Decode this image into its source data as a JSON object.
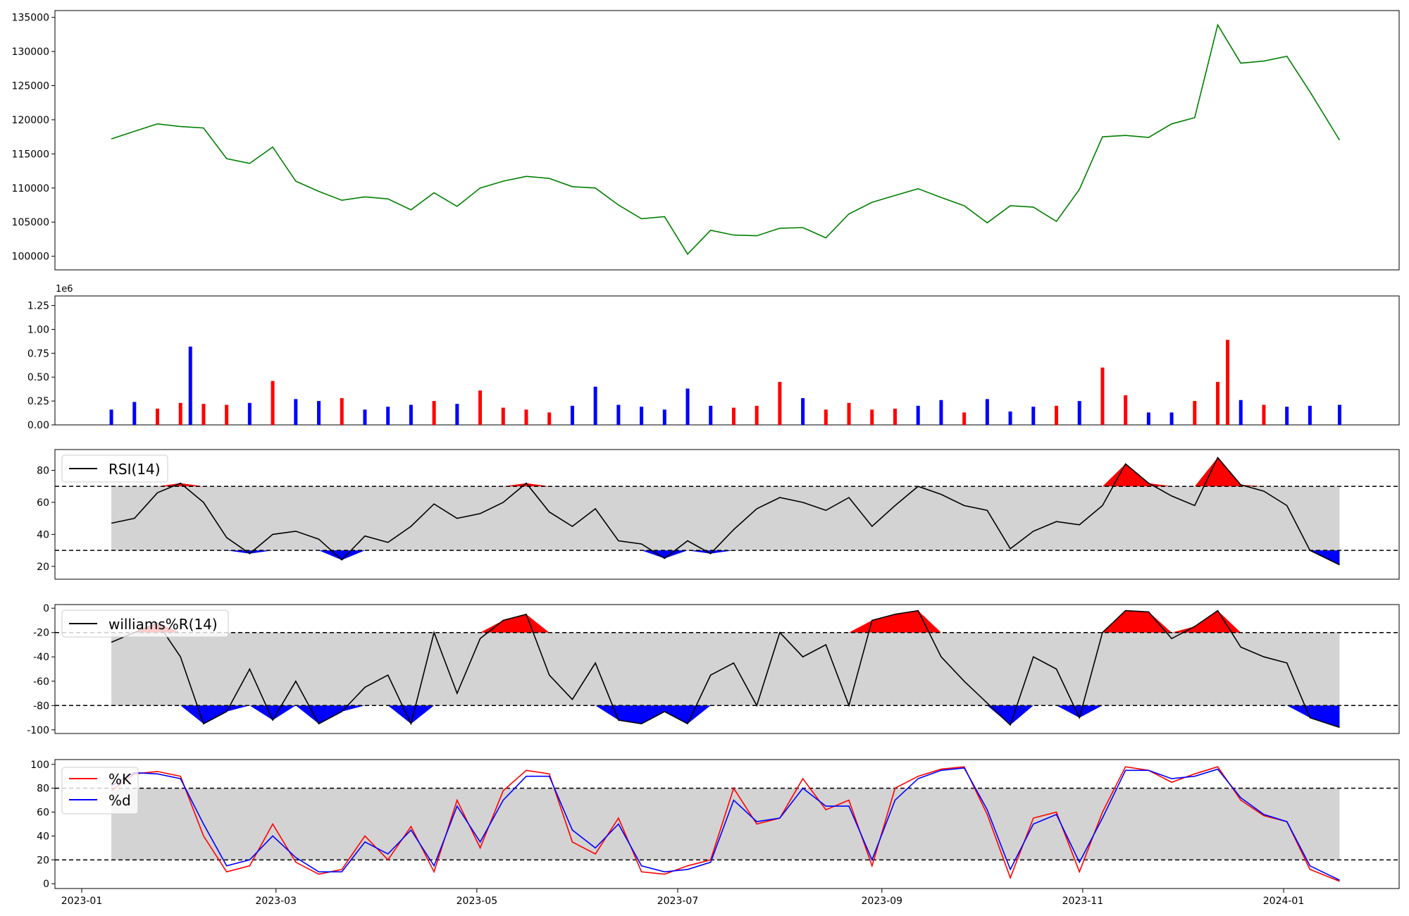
{
  "x_axis": {
    "type": "date",
    "ticks": [
      "2023-01",
      "2023-03",
      "2023-05",
      "2023-07",
      "2023-09",
      "2023-11",
      "2024-01"
    ]
  },
  "panels": {
    "price": {
      "yticks": [
        100000,
        105000,
        110000,
        115000,
        120000,
        125000,
        130000,
        135000
      ],
      "line_color": "#008000"
    },
    "volume": {
      "offset_label": "1e6",
      "yticks": [
        "0.00",
        "0.25",
        "0.50",
        "0.75",
        "1.00",
        "1.25"
      ],
      "colors": {
        "up": "#ff0000",
        "down": "#0000ff",
        "flat": "#000000"
      }
    },
    "rsi": {
      "legend": "RSI(14)",
      "yticks": [
        20,
        40,
        60,
        80
      ],
      "bands": [
        30,
        70
      ]
    },
    "williams": {
      "legend": "williams%R(14)",
      "yticks": [
        0,
        -20,
        -40,
        -60,
        -80,
        -100
      ],
      "bands": [
        -80,
        -20
      ]
    },
    "stoch": {
      "legend_k": "%K",
      "legend_d": "%d",
      "yticks": [
        0,
        20,
        40,
        60,
        80,
        100
      ],
      "bands": [
        20,
        80
      ],
      "k_color": "#ff0000",
      "d_color": "#0000ff"
    }
  },
  "chart_data": [
    {
      "type": "line",
      "name": "price",
      "x": [
        "2023-01-10",
        "2023-01-17",
        "2023-01-24",
        "2023-01-31",
        "2023-02-07",
        "2023-02-14",
        "2023-02-21",
        "2023-02-28",
        "2023-03-07",
        "2023-03-14",
        "2023-03-21",
        "2023-03-28",
        "2023-04-04",
        "2023-04-11",
        "2023-04-18",
        "2023-04-25",
        "2023-05-02",
        "2023-05-09",
        "2023-05-16",
        "2023-05-23",
        "2023-05-30",
        "2023-06-06",
        "2023-06-13",
        "2023-06-20",
        "2023-06-27",
        "2023-07-04",
        "2023-07-11",
        "2023-07-18",
        "2023-07-25",
        "2023-08-01",
        "2023-08-08",
        "2023-08-15",
        "2023-08-22",
        "2023-08-29",
        "2023-09-05",
        "2023-09-12",
        "2023-09-19",
        "2023-09-26",
        "2023-10-03",
        "2023-10-10",
        "2023-10-17",
        "2023-10-24",
        "2023-10-31",
        "2023-11-07",
        "2023-11-14",
        "2023-11-21",
        "2023-11-28",
        "2023-12-05",
        "2023-12-12",
        "2023-12-19",
        "2023-12-26",
        "2024-01-02",
        "2024-01-09",
        "2024-01-18"
      ],
      "y": [
        117200,
        118300,
        119400,
        119000,
        118800,
        114300,
        113600,
        116000,
        111000,
        109500,
        108200,
        108700,
        108400,
        106800,
        109300,
        107300,
        110000,
        111000,
        111700,
        111400,
        110200,
        110000,
        107500,
        105500,
        105800,
        100300,
        103800,
        103100,
        103000,
        104100,
        104200,
        102700,
        106200,
        107900,
        108900,
        109900,
        108600,
        107400,
        104900,
        107400,
        107200,
        105100,
        109800,
        117500,
        117700,
        117400,
        119400,
        120300,
        133900,
        128300,
        128600,
        129300,
        124100,
        117000
      ]
    },
    {
      "type": "bar",
      "name": "volume",
      "x": [
        "2023-01-10",
        "2023-01-17",
        "2023-01-24",
        "2023-01-31",
        "2023-02-03",
        "2023-02-07",
        "2023-02-14",
        "2023-02-21",
        "2023-02-28",
        "2023-03-07",
        "2023-03-14",
        "2023-03-21",
        "2023-03-28",
        "2023-04-04",
        "2023-04-11",
        "2023-04-18",
        "2023-04-25",
        "2023-05-02",
        "2023-05-09",
        "2023-05-16",
        "2023-05-23",
        "2023-05-30",
        "2023-06-06",
        "2023-06-13",
        "2023-06-20",
        "2023-06-27",
        "2023-07-04",
        "2023-07-11",
        "2023-07-18",
        "2023-07-25",
        "2023-08-01",
        "2023-08-08",
        "2023-08-15",
        "2023-08-22",
        "2023-08-29",
        "2023-09-05",
        "2023-09-12",
        "2023-09-19",
        "2023-09-26",
        "2023-10-03",
        "2023-10-10",
        "2023-10-17",
        "2023-10-24",
        "2023-10-31",
        "2023-11-07",
        "2023-11-14",
        "2023-11-21",
        "2023-11-28",
        "2023-12-05",
        "2023-12-12",
        "2023-12-15",
        "2023-12-19",
        "2023-12-26",
        "2024-01-02",
        "2024-01-09",
        "2024-01-18"
      ],
      "values": [
        160000,
        240000,
        170000,
        230000,
        820000,
        220000,
        210000,
        230000,
        460000,
        270000,
        250000,
        280000,
        160000,
        190000,
        210000,
        250000,
        220000,
        360000,
        180000,
        160000,
        130000,
        200000,
        400000,
        210000,
        190000,
        160000,
        380000,
        200000,
        180000,
        200000,
        450000,
        280000,
        160000,
        230000,
        160000,
        170000,
        200000,
        260000,
        130000,
        270000,
        140000,
        190000,
        200000,
        250000,
        600000,
        310000,
        130000,
        130000,
        250000,
        450000,
        890000,
        260000,
        210000,
        190000,
        200000,
        210000
      ],
      "direction": [
        "down",
        "down",
        "up",
        "up",
        "down",
        "up",
        "up",
        "down",
        "up",
        "down",
        "down",
        "up",
        "down",
        "down",
        "down",
        "up",
        "down",
        "up",
        "up",
        "up",
        "up",
        "down",
        "down",
        "down",
        "down",
        "down",
        "down",
        "down",
        "up",
        "up",
        "up",
        "down",
        "up",
        "up",
        "up",
        "up",
        "down",
        "down",
        "up",
        "down",
        "down",
        "down",
        "up",
        "down",
        "up",
        "up",
        "down",
        "down",
        "up",
        "up",
        "up",
        "down",
        "up",
        "down",
        "down",
        "down"
      ]
    },
    {
      "type": "line",
      "name": "RSI(14)",
      "x": [
        "2023-01-10",
        "2023-01-17",
        "2023-01-24",
        "2023-01-31",
        "2023-02-07",
        "2023-02-14",
        "2023-02-21",
        "2023-02-28",
        "2023-03-07",
        "2023-03-14",
        "2023-03-21",
        "2023-03-28",
        "2023-04-04",
        "2023-04-11",
        "2023-04-18",
        "2023-04-25",
        "2023-05-02",
        "2023-05-09",
        "2023-05-16",
        "2023-05-23",
        "2023-05-30",
        "2023-06-06",
        "2023-06-13",
        "2023-06-20",
        "2023-06-27",
        "2023-07-04",
        "2023-07-11",
        "2023-07-18",
        "2023-07-25",
        "2023-08-01",
        "2023-08-08",
        "2023-08-15",
        "2023-08-22",
        "2023-08-29",
        "2023-09-05",
        "2023-09-12",
        "2023-09-19",
        "2023-09-26",
        "2023-10-03",
        "2023-10-10",
        "2023-10-17",
        "2023-10-24",
        "2023-10-31",
        "2023-11-07",
        "2023-11-14",
        "2023-11-21",
        "2023-11-28",
        "2023-12-05",
        "2023-12-12",
        "2023-12-19",
        "2023-12-26",
        "2024-01-02",
        "2024-01-09",
        "2024-01-18"
      ],
      "y": [
        47,
        50,
        66,
        72,
        60,
        38,
        28,
        40,
        42,
        37,
        24,
        39,
        35,
        45,
        59,
        50,
        53,
        60,
        72,
        54,
        45,
        56,
        36,
        34,
        25,
        36,
        28,
        43,
        56,
        63,
        60,
        55,
        63,
        45,
        58,
        70,
        65,
        58,
        55,
        31,
        42,
        48,
        46,
        58,
        84,
        72,
        64,
        58,
        88,
        71,
        67,
        58,
        30,
        21
      ]
    },
    {
      "type": "line",
      "name": "williams%R(14)",
      "x": [
        "2023-01-10",
        "2023-01-17",
        "2023-01-24",
        "2023-01-31",
        "2023-02-07",
        "2023-02-14",
        "2023-02-21",
        "2023-02-28",
        "2023-03-07",
        "2023-03-14",
        "2023-03-21",
        "2023-03-28",
        "2023-04-04",
        "2023-04-11",
        "2023-04-18",
        "2023-04-25",
        "2023-05-02",
        "2023-05-09",
        "2023-05-16",
        "2023-05-23",
        "2023-05-30",
        "2023-06-06",
        "2023-06-13",
        "2023-06-20",
        "2023-06-27",
        "2023-07-04",
        "2023-07-11",
        "2023-07-18",
        "2023-07-25",
        "2023-08-01",
        "2023-08-08",
        "2023-08-15",
        "2023-08-22",
        "2023-08-29",
        "2023-09-05",
        "2023-09-12",
        "2023-09-19",
        "2023-09-26",
        "2023-10-03",
        "2023-10-10",
        "2023-10-17",
        "2023-10-24",
        "2023-10-31",
        "2023-11-07",
        "2023-11-14",
        "2023-11-21",
        "2023-11-28",
        "2023-12-05",
        "2023-12-12",
        "2023-12-19",
        "2023-12-26",
        "2024-01-02",
        "2024-01-09",
        "2024-01-18"
      ],
      "y": [
        -28,
        -20,
        -12,
        -40,
        -95,
        -85,
        -50,
        -92,
        -60,
        -95,
        -85,
        -65,
        -55,
        -95,
        -20,
        -70,
        -25,
        -10,
        -5,
        -55,
        -75,
        -45,
        -92,
        -95,
        -85,
        -95,
        -55,
        -45,
        -80,
        -20,
        -40,
        -30,
        -80,
        -10,
        -5,
        -2,
        -40,
        -60,
        -78,
        -96,
        -40,
        -50,
        -90,
        -20,
        -2,
        -3,
        -25,
        -15,
        -2,
        -32,
        -40,
        -45,
        -90,
        -98
      ]
    },
    {
      "type": "line",
      "name": "stochastic",
      "x": [
        "2023-01-10",
        "2023-01-17",
        "2023-01-24",
        "2023-01-31",
        "2023-02-07",
        "2023-02-14",
        "2023-02-21",
        "2023-02-28",
        "2023-03-07",
        "2023-03-14",
        "2023-03-21",
        "2023-03-28",
        "2023-04-04",
        "2023-04-11",
        "2023-04-18",
        "2023-04-25",
        "2023-05-02",
        "2023-05-09",
        "2023-05-16",
        "2023-05-23",
        "2023-05-30",
        "2023-06-06",
        "2023-06-13",
        "2023-06-20",
        "2023-06-27",
        "2023-07-04",
        "2023-07-11",
        "2023-07-18",
        "2023-07-25",
        "2023-08-01",
        "2023-08-08",
        "2023-08-15",
        "2023-08-22",
        "2023-08-29",
        "2023-09-05",
        "2023-09-12",
        "2023-09-19",
        "2023-09-26",
        "2023-10-03",
        "2023-10-10",
        "2023-10-17",
        "2023-10-24",
        "2023-10-31",
        "2023-11-07",
        "2023-11-14",
        "2023-11-21",
        "2023-11-28",
        "2023-12-05",
        "2023-12-12",
        "2023-12-19",
        "2023-12-26",
        "2024-01-02",
        "2024-01-09",
        "2024-01-18"
      ],
      "series": [
        {
          "name": "%K",
          "values": [
            78,
            92,
            94,
            90,
            40,
            10,
            15,
            50,
            18,
            8,
            12,
            40,
            20,
            48,
            10,
            70,
            30,
            78,
            95,
            92,
            35,
            25,
            55,
            10,
            8,
            15,
            20,
            80,
            50,
            55,
            88,
            62,
            70,
            15,
            80,
            90,
            96,
            98,
            58,
            5,
            55,
            60,
            10,
            60,
            98,
            95,
            85,
            92,
            98,
            70,
            57,
            52,
            12,
            2
          ]
        },
        {
          "name": "%d",
          "values": [
            82,
            93,
            92,
            88,
            50,
            15,
            20,
            40,
            22,
            10,
            10,
            35,
            25,
            45,
            15,
            65,
            35,
            70,
            90,
            90,
            45,
            30,
            50,
            15,
            10,
            12,
            18,
            70,
            52,
            55,
            80,
            65,
            65,
            20,
            70,
            88,
            95,
            97,
            62,
            12,
            50,
            58,
            18,
            55,
            95,
            95,
            88,
            90,
            96,
            72,
            58,
            52,
            15,
            3
          ]
        }
      ]
    }
  ]
}
